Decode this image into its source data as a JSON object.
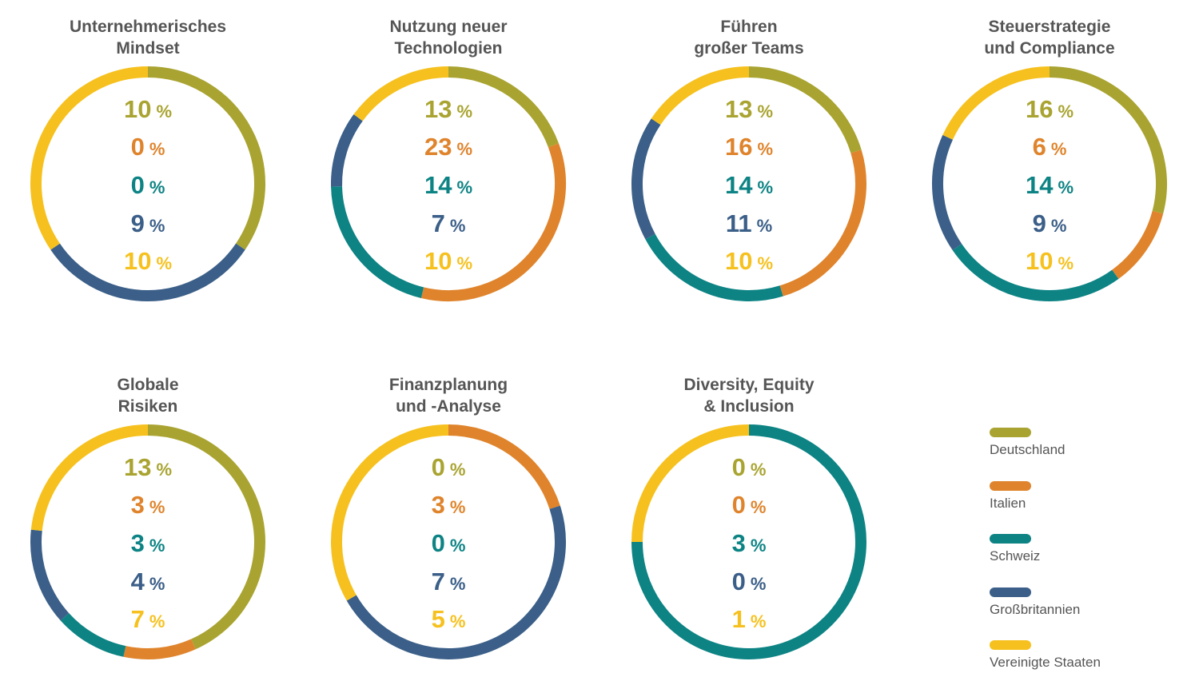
{
  "legend": [
    {
      "name": "Deutschland",
      "color": "#A9A431"
    },
    {
      "name": "Italien",
      "color": "#DF842C"
    },
    {
      "name": "Schweiz",
      "color": "#0D8384"
    },
    {
      "name": "Großbritannien",
      "color": "#3B5F88"
    },
    {
      "name": "Vereinigte Staaten",
      "color": "#F6C11E"
    }
  ],
  "chart_data": [
    {
      "type": "pie",
      "title_lines": [
        "Unternehmerisches",
        "Mindset"
      ],
      "categories": [
        "Deutschland",
        "Italien",
        "Schweiz",
        "Großbritannien",
        "Vereinigte Staaten"
      ],
      "values": [
        10,
        0,
        0,
        9,
        10
      ],
      "unit": "%"
    },
    {
      "type": "pie",
      "title_lines": [
        "Nutzung neuer",
        "Technologien"
      ],
      "categories": [
        "Deutschland",
        "Italien",
        "Schweiz",
        "Großbritannien",
        "Vereinigte Staaten"
      ],
      "values": [
        13,
        23,
        14,
        7,
        10
      ],
      "unit": "%"
    },
    {
      "type": "pie",
      "title_lines": [
        "Führen",
        "großer Teams"
      ],
      "categories": [
        "Deutschland",
        "Italien",
        "Schweiz",
        "Großbritannien",
        "Vereinigte Staaten"
      ],
      "values": [
        13,
        16,
        14,
        11,
        10
      ],
      "unit": "%"
    },
    {
      "type": "pie",
      "title_lines": [
        "Steuerstrategie",
        "und Compliance"
      ],
      "categories": [
        "Deutschland",
        "Italien",
        "Schweiz",
        "Großbritannien",
        "Vereinigte Staaten"
      ],
      "values": [
        16,
        6,
        14,
        9,
        10
      ],
      "unit": "%"
    },
    {
      "type": "pie",
      "title_lines": [
        "Globale",
        "Risiken"
      ],
      "categories": [
        "Deutschland",
        "Italien",
        "Schweiz",
        "Großbritannien",
        "Vereinigte Staaten"
      ],
      "values": [
        13,
        3,
        3,
        4,
        7
      ],
      "unit": "%"
    },
    {
      "type": "pie",
      "title_lines": [
        "Finanzplanung",
        "und -Analyse"
      ],
      "categories": [
        "Deutschland",
        "Italien",
        "Schweiz",
        "Großbritannien",
        "Vereinigte Staaten"
      ],
      "values": [
        0,
        3,
        0,
        7,
        5
      ],
      "unit": "%"
    },
    {
      "type": "pie",
      "title_lines": [
        "Diversity, Equity",
        "& Inclusion"
      ],
      "categories": [
        "Deutschland",
        "Italien",
        "Schweiz",
        "Großbritannien",
        "Vereinigte Staaten"
      ],
      "values": [
        0,
        0,
        3,
        0,
        1
      ],
      "unit": "%"
    }
  ]
}
